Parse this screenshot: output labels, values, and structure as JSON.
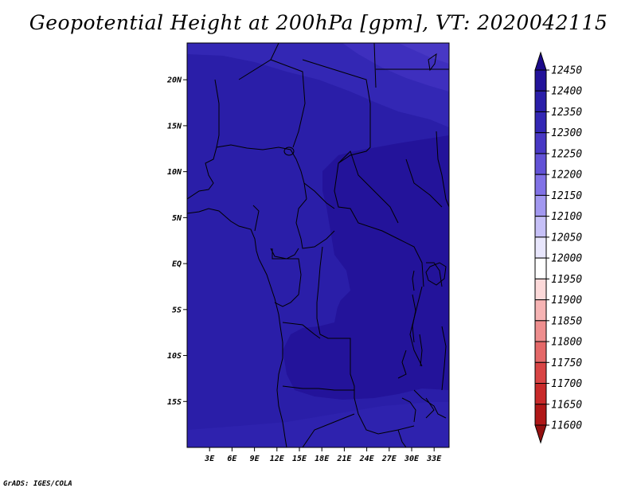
{
  "title": "Geopotential Height at 200hPa [gpm], VT: 2020042115",
  "footer": "GrADS: IGES/COLA",
  "chart_data": {
    "type": "heatmap",
    "variable": "Geopotential Height at 200hPa",
    "units": "gpm",
    "valid_time": "2020042115",
    "lon_range": [
      0,
      35
    ],
    "lat_range": [
      -20,
      24
    ],
    "x_ticks": [
      "3E",
      "6E",
      "9E",
      "12E",
      "15E",
      "18E",
      "21E",
      "24E",
      "27E",
      "30E",
      "33E"
    ],
    "x_tick_values": [
      3,
      6,
      9,
      12,
      15,
      18,
      21,
      24,
      27,
      30,
      33
    ],
    "y_ticks": [
      "20N",
      "15N",
      "10N",
      "5N",
      "EQ",
      "5S",
      "10S",
      "15S"
    ],
    "y_tick_values": [
      20,
      15,
      10,
      5,
      0,
      -5,
      -10,
      -15
    ],
    "colorbar": {
      "levels": [
        12450,
        12400,
        12350,
        12300,
        12250,
        12200,
        12150,
        12100,
        12050,
        12000,
        11950,
        11900,
        11850,
        11800,
        11750,
        11700,
        11650,
        11600
      ],
      "colors": [
        "#1c0a8a",
        "#23139a",
        "#2a1ea8",
        "#3327b4",
        "#4838c4",
        "#6252d6",
        "#8172e6",
        "#a298f0",
        "#c6c0f7",
        "#e8e6fc",
        "#ffffff",
        "#fcd9d9",
        "#f6b4b4",
        "#ee8e8e",
        "#e46868",
        "#d84444",
        "#c82a2a",
        "#b01818",
        "#941010"
      ]
    },
    "field_regions": [
      {
        "level_range": [
          12350,
          12400
        ],
        "area": "south of ~18N, west of ~14E; Sahara north of ~18N"
      },
      {
        "level_range": [
          12400,
          12450
        ],
        "area": "central Africa 13E-35E, ~12N to ~15S"
      },
      {
        "level_range": [
          12300,
          12350
        ],
        "area": "northeast corner north of ~20N"
      },
      {
        "level_range": [
          12250,
          12300
        ],
        "area": "extreme northeast near 30E-35E, 24N"
      },
      {
        "level_range": [
          12350,
          12400
        ],
        "area": "southern part south of ~16S"
      }
    ]
  }
}
